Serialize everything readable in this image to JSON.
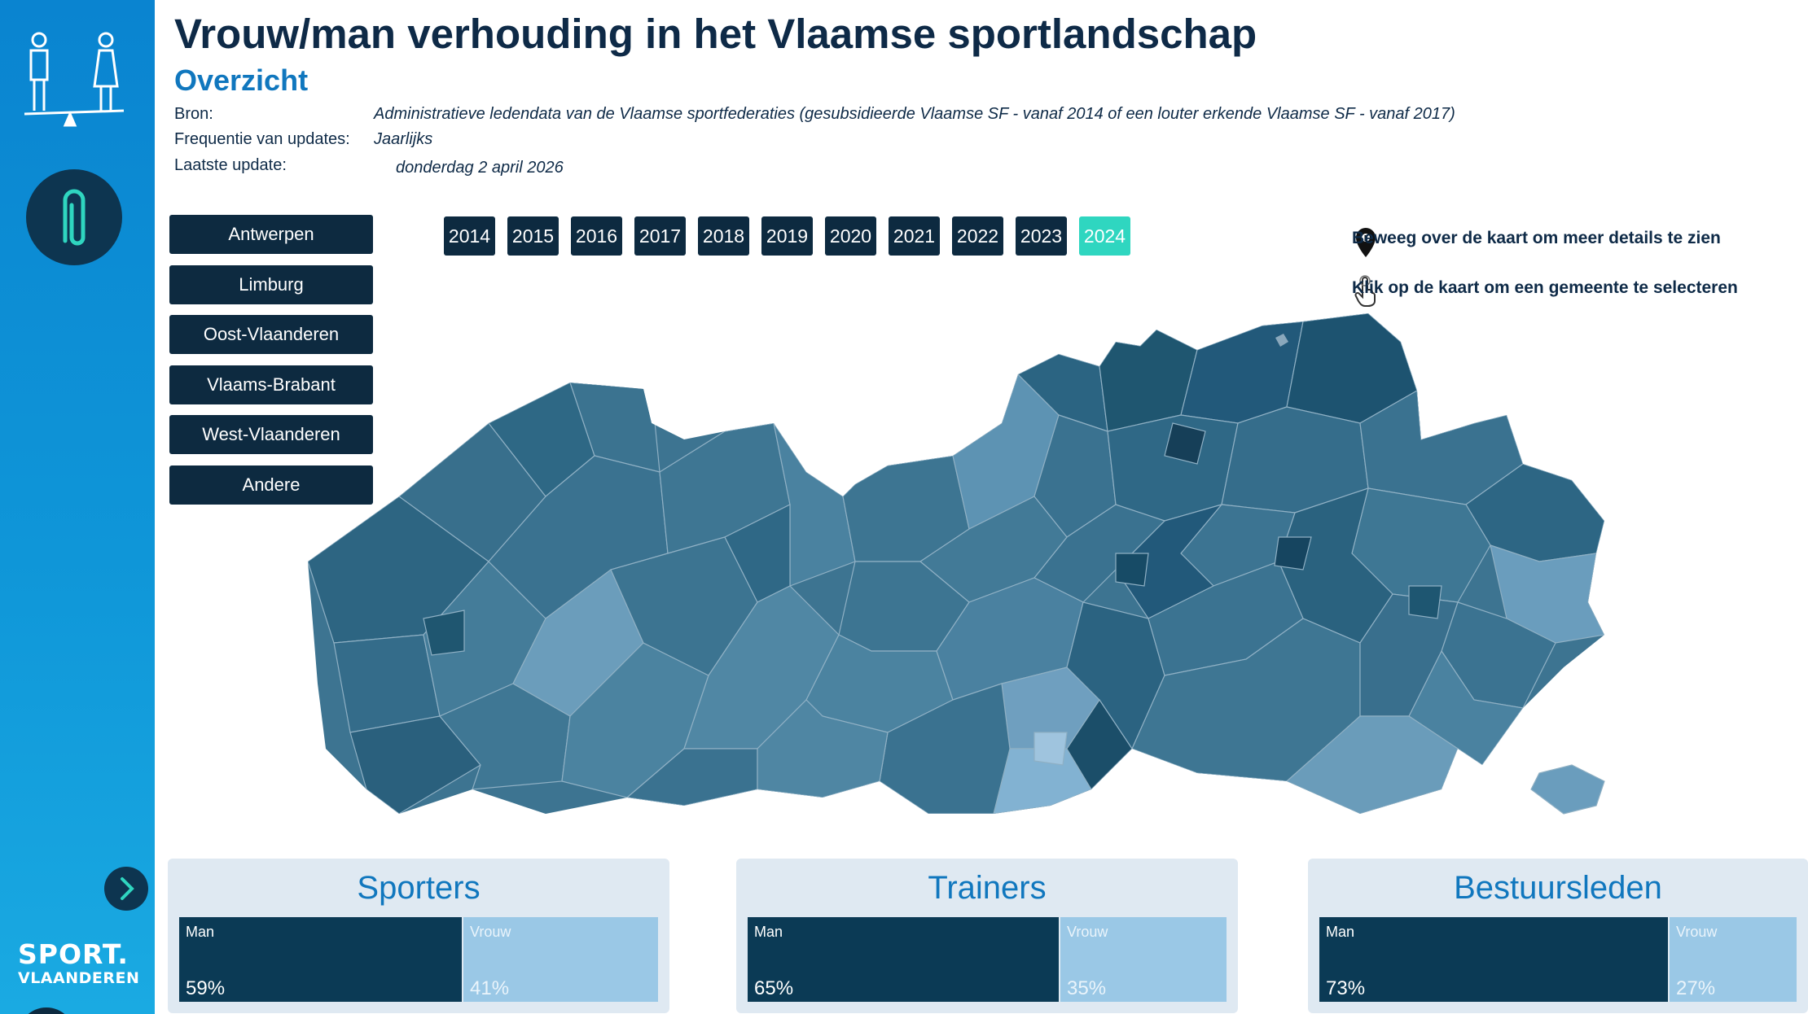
{
  "header": {
    "title": "Vrouw/man verhouding in het Vlaamse sportlandschap",
    "subtitle": "Overzicht",
    "source_label": "Bron:",
    "source_value": "Administratieve ledendata van de Vlaamse sportfederaties (gesubsidieerde Vlaamse SF - vanaf 2014 of een louter erkende Vlaamse SF - vanaf 2017)",
    "frequency_label": "Frequentie van updates:",
    "frequency_value": "Jaarlijks",
    "update_label": "Laatste update:",
    "update_value": "donderdag 2 april 2026"
  },
  "provinces": [
    "Antwerpen",
    "Limburg",
    "Oost-Vlaanderen",
    "Vlaams-Brabant",
    "West-Vlaanderen",
    "Andere"
  ],
  "years": [
    "2014",
    "2015",
    "2016",
    "2017",
    "2018",
    "2019",
    "2020",
    "2021",
    "2022",
    "2023",
    "2024"
  ],
  "selected_year": "2024",
  "hints": {
    "hover": "Beweeg over de kaart om meer details te zien",
    "click": "Klik op de kaart om een gemeente te selecteren"
  },
  "logo": {
    "line1": "SPORT.",
    "line2": "VLAANDEREN"
  },
  "cards": [
    {
      "title": "Sporters",
      "man_label": "Man",
      "man_pct": "59%",
      "man_share": 0.59,
      "vrouw_label": "Vrouw",
      "vrouw_pct": "41%",
      "vrouw_share": 0.41
    },
    {
      "title": "Trainers",
      "man_label": "Man",
      "man_pct": "65%",
      "man_share": 0.65,
      "vrouw_label": "Vrouw",
      "vrouw_pct": "35%",
      "vrouw_share": 0.35
    },
    {
      "title": "Bestuursleden",
      "man_label": "Man",
      "man_pct": "73%",
      "man_share": 0.73,
      "vrouw_label": "Vrouw",
      "vrouw_pct": "27%",
      "vrouw_share": 0.27
    }
  ],
  "colors": {
    "sidebar": "#0a84d0",
    "button_dark": "#0d2a40",
    "year_active": "#2fd6c0",
    "accent_blue": "#1077be",
    "man_bar": "#0b3a55",
    "vrouw_bar": "#9ac8e6",
    "map_dark": "#1f5670",
    "map_mid": "#3d7491",
    "map_light": "#7fb0cf"
  }
}
